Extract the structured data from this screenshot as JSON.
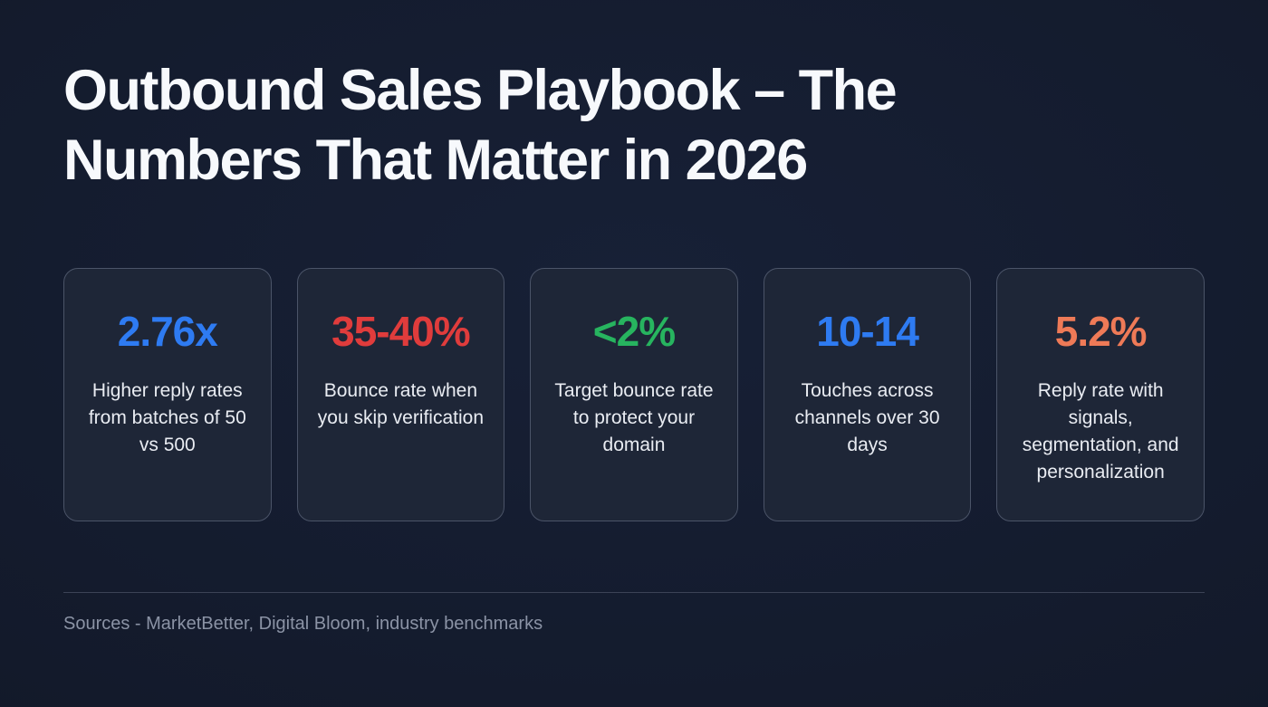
{
  "title": "Outbound Sales Playbook – The\nNumbers That Matter in 2026",
  "stats": [
    {
      "value": "2.76x",
      "color": "#2e7bf2",
      "description": "Higher reply rates from batches of 50 vs 500"
    },
    {
      "value": "35-40%",
      "color": "#e03c3c",
      "description": "Bounce rate when you skip verification"
    },
    {
      "value": "<2%",
      "color": "#27b45f",
      "description": "Target bounce rate to protect your domain"
    },
    {
      "value": "10-14",
      "color": "#2e7bf2",
      "description": "Touches across channels over 30 days"
    },
    {
      "value": "5.2%",
      "color": "#ee7a57",
      "description": "Reply rate with signals, segmentation, and personalization"
    }
  ],
  "footer": {
    "sources": "Sources - MarketBetter, Digital Bloom, industry benchmarks"
  },
  "colors": {
    "background": "#131a2b",
    "card_background": "#1e2637",
    "card_border": "#4b5468",
    "title_text": "#f7f9fc",
    "body_text": "#e9ecf2",
    "muted_text": "#8b93a5"
  }
}
